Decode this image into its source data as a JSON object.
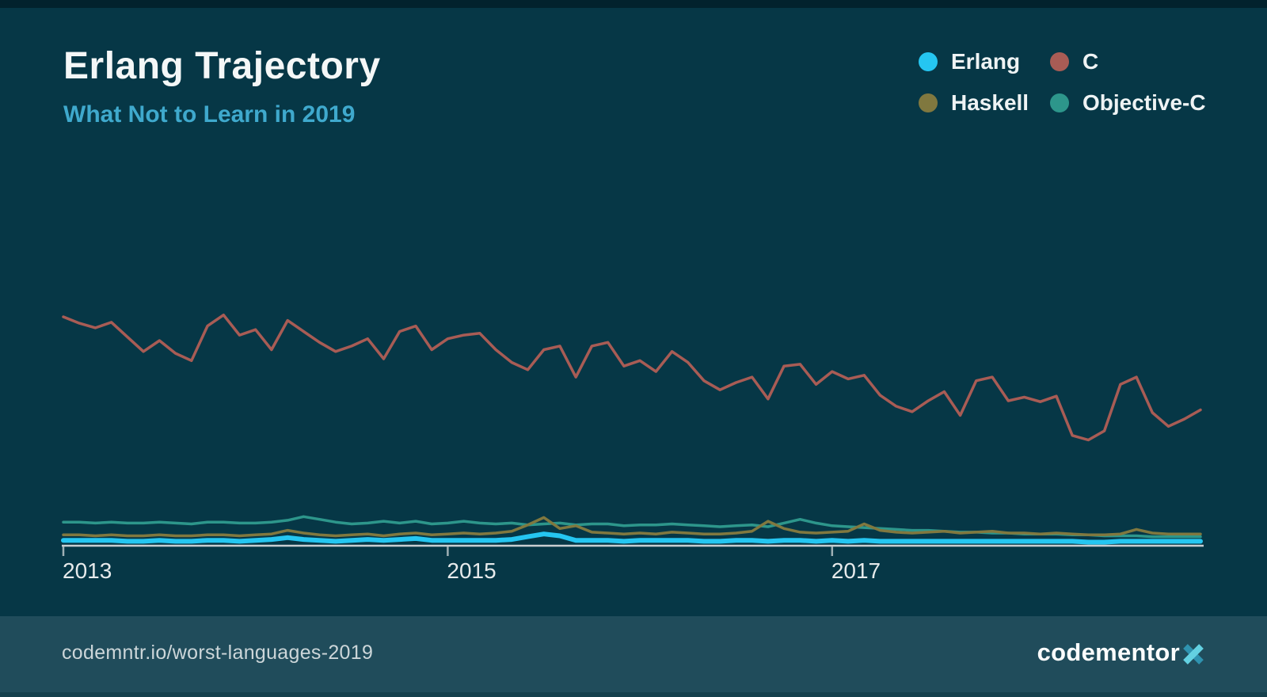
{
  "header": {
    "title": "Erlang Trajectory",
    "subtitle": "What Not to Learn in 2019"
  },
  "legend": {
    "position": "top-right",
    "items": [
      {
        "label": "Erlang",
        "color": "#25c6f1"
      },
      {
        "label": "C",
        "color": "#a85c55"
      },
      {
        "label": "Haskell",
        "color": "#80783f"
      },
      {
        "label": "Objective-C",
        "color": "#2d968b"
      }
    ]
  },
  "footer": {
    "url": "codemntr.io/worst-languages-2019",
    "brand_name": "codementor",
    "brand_x": "X",
    "brand_x_color_light": "#63d1e2",
    "brand_x_color_dark": "#2f93b0"
  },
  "colors": {
    "background": "#063746",
    "edge_strip": "#02222d",
    "footer_background": "#204c5b",
    "axis": "#c9ced1",
    "title_text": "#f4f7f7",
    "subtitle_text": "#3fa9cd",
    "tick_label_text": "#e6eaeb"
  },
  "chart_data": {
    "type": "line",
    "title": "Erlang Trajectory",
    "subtitle": "What Not to Learn in 2019",
    "xlabel": "",
    "ylabel": "",
    "x_unit": "month",
    "x_start": "2013-01",
    "x_end": "2018-12",
    "x_ticks": [
      "2013",
      "2015",
      "2017"
    ],
    "tick_positions_months": [
      0,
      24,
      48
    ],
    "ylim": [
      0,
      2.7
    ],
    "grid": false,
    "legend_position": "top-right",
    "series": [
      {
        "name": "C",
        "color": "#a85c55",
        "width": 3.5,
        "values": [
          2.5,
          2.43,
          2.38,
          2.44,
          2.28,
          2.12,
          2.24,
          2.1,
          2.02,
          2.4,
          2.52,
          2.3,
          2.36,
          2.14,
          2.46,
          2.34,
          2.22,
          2.12,
          2.18,
          2.26,
          2.04,
          2.34,
          2.4,
          2.14,
          2.26,
          2.3,
          2.32,
          2.14,
          2.0,
          1.92,
          2.14,
          2.18,
          1.84,
          2.18,
          2.22,
          1.96,
          2.02,
          1.9,
          2.12,
          2.0,
          1.8,
          1.7,
          1.78,
          1.84,
          1.6,
          1.96,
          1.98,
          1.76,
          1.9,
          1.82,
          1.86,
          1.64,
          1.52,
          1.46,
          1.58,
          1.68,
          1.42,
          1.8,
          1.84,
          1.58,
          1.62,
          1.57,
          1.63,
          1.2,
          1.15,
          1.25,
          1.76,
          1.84,
          1.45,
          1.3,
          1.38,
          1.48
        ]
      },
      {
        "name": "Objective-C",
        "color": "#2d968b",
        "width": 3.5,
        "values": [
          0.25,
          0.25,
          0.24,
          0.25,
          0.24,
          0.24,
          0.25,
          0.24,
          0.23,
          0.25,
          0.25,
          0.24,
          0.24,
          0.25,
          0.27,
          0.31,
          0.28,
          0.25,
          0.23,
          0.24,
          0.26,
          0.24,
          0.26,
          0.23,
          0.24,
          0.26,
          0.24,
          0.23,
          0.24,
          0.22,
          0.23,
          0.24,
          0.22,
          0.23,
          0.23,
          0.21,
          0.22,
          0.22,
          0.23,
          0.22,
          0.21,
          0.2,
          0.21,
          0.22,
          0.2,
          0.24,
          0.28,
          0.24,
          0.21,
          0.2,
          0.19,
          0.18,
          0.17,
          0.16,
          0.16,
          0.15,
          0.14,
          0.14,
          0.13,
          0.13,
          0.12,
          0.12,
          0.12,
          0.11,
          0.11,
          0.1,
          0.1,
          0.1,
          0.09,
          0.09,
          0.09,
          0.09
        ]
      },
      {
        "name": "Haskell",
        "color": "#80783f",
        "width": 3.5,
        "values": [
          0.11,
          0.11,
          0.1,
          0.11,
          0.1,
          0.1,
          0.11,
          0.1,
          0.1,
          0.11,
          0.11,
          0.1,
          0.11,
          0.12,
          0.16,
          0.13,
          0.11,
          0.1,
          0.11,
          0.12,
          0.1,
          0.12,
          0.13,
          0.11,
          0.12,
          0.13,
          0.12,
          0.13,
          0.15,
          0.22,
          0.3,
          0.18,
          0.21,
          0.14,
          0.13,
          0.12,
          0.13,
          0.12,
          0.14,
          0.13,
          0.12,
          0.12,
          0.13,
          0.15,
          0.26,
          0.18,
          0.14,
          0.13,
          0.14,
          0.15,
          0.23,
          0.16,
          0.14,
          0.13,
          0.14,
          0.15,
          0.13,
          0.14,
          0.15,
          0.13,
          0.13,
          0.12,
          0.13,
          0.12,
          0.11,
          0.11,
          0.12,
          0.17,
          0.13,
          0.12,
          0.12,
          0.12
        ]
      },
      {
        "name": "Erlang",
        "color": "#25c6f1",
        "width": 6,
        "values": [
          0.05,
          0.05,
          0.05,
          0.05,
          0.04,
          0.04,
          0.05,
          0.04,
          0.04,
          0.05,
          0.05,
          0.04,
          0.05,
          0.06,
          0.08,
          0.06,
          0.05,
          0.04,
          0.05,
          0.06,
          0.05,
          0.06,
          0.07,
          0.05,
          0.05,
          0.05,
          0.05,
          0.05,
          0.06,
          0.09,
          0.12,
          0.1,
          0.05,
          0.05,
          0.05,
          0.04,
          0.05,
          0.05,
          0.05,
          0.05,
          0.04,
          0.04,
          0.05,
          0.05,
          0.04,
          0.05,
          0.05,
          0.04,
          0.05,
          0.04,
          0.05,
          0.04,
          0.04,
          0.04,
          0.04,
          0.04,
          0.04,
          0.04,
          0.04,
          0.04,
          0.04,
          0.04,
          0.04,
          0.04,
          0.03,
          0.03,
          0.04,
          0.04,
          0.04,
          0.04,
          0.04,
          0.04
        ]
      }
    ]
  }
}
